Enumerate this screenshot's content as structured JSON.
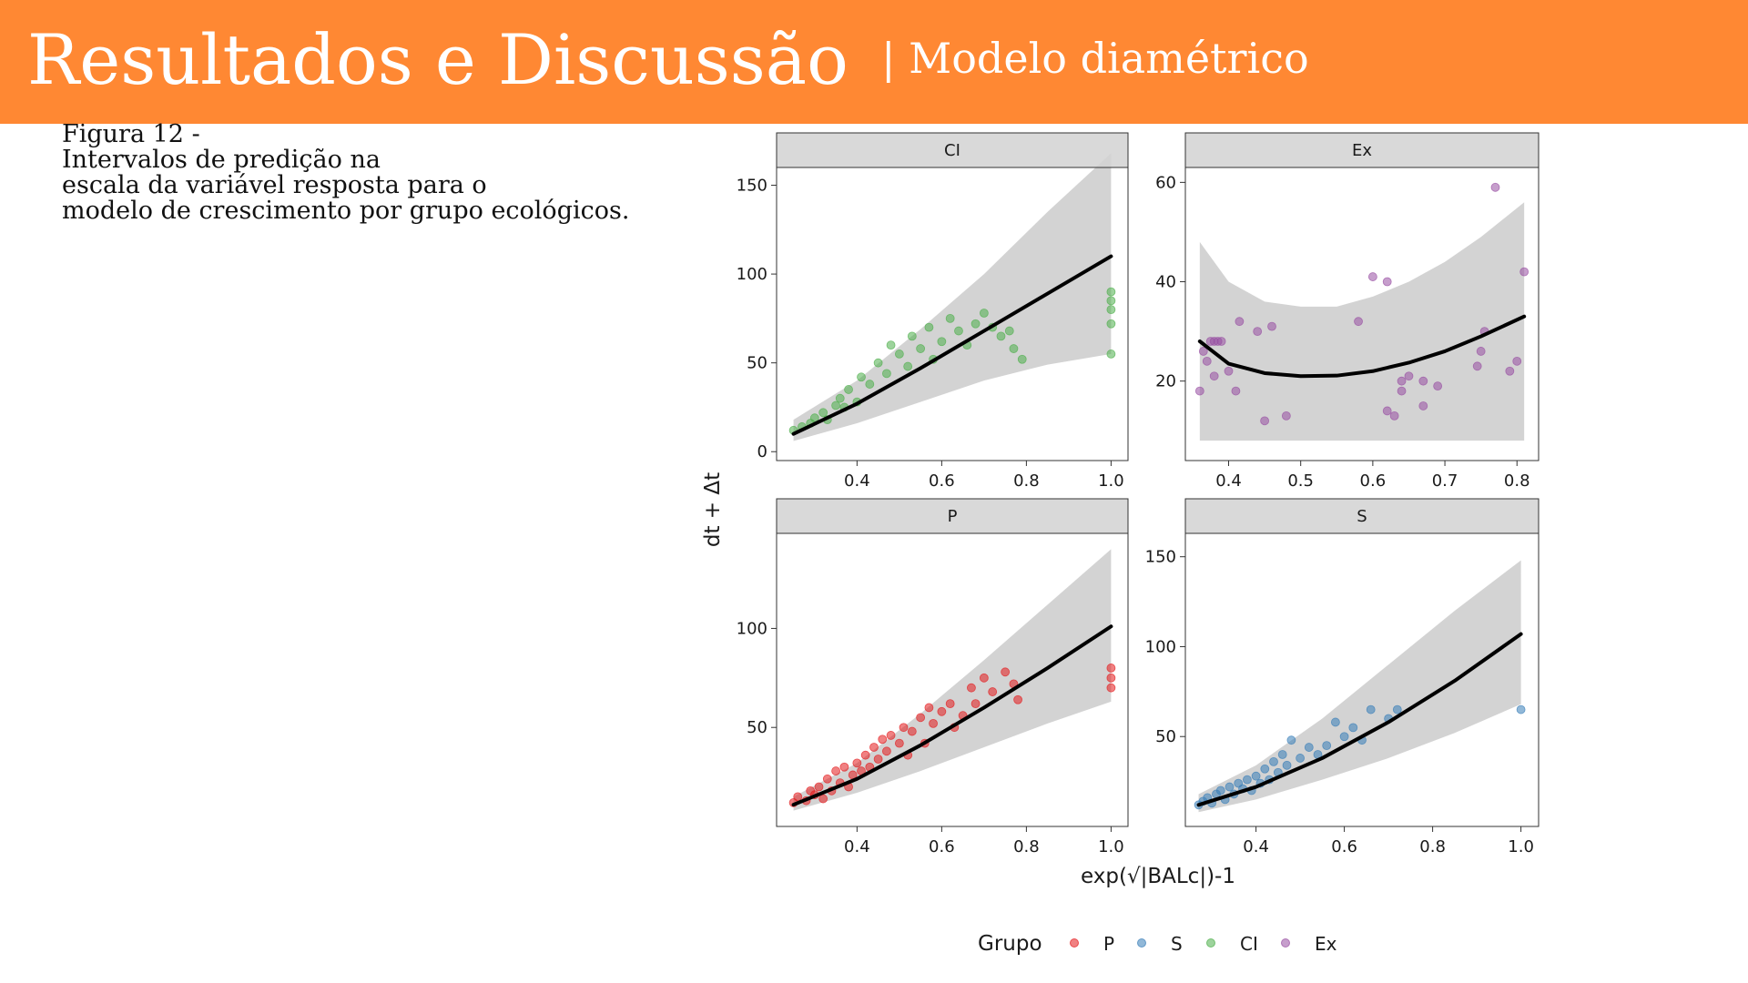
{
  "slide": {
    "title": "Resultados e Discussão",
    "subtitle": "| Modelo diamétrico"
  },
  "caption": {
    "lines": [
      "Figura 12 -",
      "Intervalos de predição na",
      "escala da variável resposta para o",
      "modelo de crescimento por grupo ecológicos."
    ]
  },
  "colors": {
    "header": "#ff8833",
    "P": "#e41a1c",
    "S": "#377eb8",
    "CI": "#4daf4a",
    "Ex": "#984ea3",
    "band": "#d3d3d3",
    "strip": "#d9d9d9"
  },
  "chart_data": {
    "type": "scatter",
    "xlabel": "exp(√|BALc|)-1",
    "ylabel": "dt + Δt",
    "legend": {
      "title": "Grupo",
      "placement": "bottom",
      "entries": [
        "P",
        "S",
        "CI",
        "Ex"
      ]
    },
    "panels": [
      {
        "name": "CI",
        "xlim": [
          0.21,
          1.04
        ],
        "ylim": [
          -5,
          160
        ],
        "xticks": [
          "0.4",
          "0.6",
          "0.8",
          "1.0"
        ],
        "yticks": [
          "0",
          "50",
          "100",
          "150"
        ],
        "fit": {
          "x": [
            0.25,
            0.4,
            0.55,
            0.7,
            0.85,
            1.0
          ],
          "y": [
            10,
            27,
            47,
            68,
            89,
            110
          ]
        },
        "band": {
          "x": [
            0.25,
            0.4,
            0.55,
            0.7,
            0.85,
            1.0
          ],
          "lower": [
            6,
            16,
            28,
            40,
            49,
            55
          ],
          "upper": [
            18,
            40,
            69,
            100,
            135,
            168
          ]
        },
        "points": {
          "x": [
            0.25,
            0.27,
            0.29,
            0.3,
            0.32,
            0.33,
            0.35,
            0.36,
            0.37,
            0.38,
            0.4,
            0.41,
            0.43,
            0.45,
            0.47,
            0.48,
            0.5,
            0.52,
            0.53,
            0.55,
            0.57,
            0.58,
            0.6,
            0.62,
            0.64,
            0.66,
            0.68,
            0.7,
            0.72,
            0.74,
            0.76,
            0.77,
            0.79,
            1.0,
            1.0,
            1.0,
            1.0,
            1.0
          ],
          "y": [
            12,
            14,
            16,
            19,
            22,
            18,
            26,
            30,
            25,
            35,
            28,
            42,
            38,
            50,
            44,
            60,
            55,
            48,
            65,
            58,
            70,
            52,
            62,
            75,
            68,
            60,
            72,
            78,
            70,
            65,
            68,
            58,
            52,
            55,
            72,
            80,
            85,
            90
          ]
        }
      },
      {
        "name": "Ex",
        "xlim": [
          0.34,
          0.83
        ],
        "ylim": [
          4,
          63
        ],
        "xticks": [
          "0.4",
          "0.5",
          "0.6",
          "0.7",
          "0.8"
        ],
        "yticks": [
          "20",
          "40",
          "60"
        ],
        "fit": {
          "x": [
            0.36,
            0.4,
            0.45,
            0.5,
            0.55,
            0.6,
            0.65,
            0.7,
            0.75,
            0.81
          ],
          "y": [
            28,
            23.5,
            21.6,
            21,
            21.1,
            22,
            23.7,
            26,
            29,
            33
          ]
        },
        "band": {
          "x": [
            0.36,
            0.4,
            0.45,
            0.5,
            0.55,
            0.6,
            0.65,
            0.7,
            0.75,
            0.81
          ],
          "lower": [
            8,
            8,
            8,
            8,
            8,
            8,
            8,
            8,
            8,
            8
          ],
          "upper": [
            48,
            40,
            36,
            35,
            35,
            37,
            40,
            44,
            49,
            56
          ]
        },
        "points": {
          "x": [
            0.36,
            0.365,
            0.37,
            0.375,
            0.38,
            0.38,
            0.385,
            0.39,
            0.4,
            0.41,
            0.415,
            0.44,
            0.45,
            0.46,
            0.48,
            0.58,
            0.6,
            0.62,
            0.62,
            0.63,
            0.64,
            0.64,
            0.65,
            0.67,
            0.67,
            0.69,
            0.745,
            0.75,
            0.755,
            0.77,
            0.79,
            0.8,
            0.81
          ],
          "y": [
            18,
            26,
            24,
            28,
            28,
            21,
            28,
            28,
            22,
            18,
            32,
            30,
            12,
            31,
            13,
            32,
            41,
            14,
            40,
            13,
            20,
            18,
            21,
            15,
            20,
            19,
            23,
            26,
            30,
            59,
            22,
            24,
            42
          ]
        }
      },
      {
        "name": "P",
        "xlim": [
          0.21,
          1.04
        ],
        "ylim": [
          0,
          148
        ],
        "xticks": [
          "0.4",
          "0.6",
          "0.8",
          "1.0"
        ],
        "yticks": [
          "50",
          "100"
        ],
        "fit": {
          "x": [
            0.25,
            0.4,
            0.55,
            0.7,
            0.85,
            1.0
          ],
          "y": [
            11,
            24,
            41,
            60,
            80,
            101
          ]
        },
        "band": {
          "x": [
            0.25,
            0.4,
            0.55,
            0.7,
            0.85,
            1.0
          ],
          "lower": [
            8,
            17,
            28,
            40,
            52,
            63
          ],
          "upper": [
            15,
            32,
            57,
            84,
            112,
            140
          ]
        },
        "points": {
          "x": [
            0.25,
            0.26,
            0.28,
            0.29,
            0.3,
            0.31,
            0.32,
            0.33,
            0.34,
            0.35,
            0.36,
            0.37,
            0.38,
            0.39,
            0.4,
            0.41,
            0.42,
            0.43,
            0.44,
            0.45,
            0.46,
            0.47,
            0.48,
            0.5,
            0.51,
            0.52,
            0.53,
            0.55,
            0.56,
            0.57,
            0.58,
            0.6,
            0.62,
            0.63,
            0.65,
            0.67,
            0.68,
            0.7,
            0.72,
            0.75,
            0.77,
            0.78,
            1.0,
            1.0,
            1.0
          ],
          "y": [
            12,
            15,
            13,
            18,
            16,
            20,
            14,
            24,
            18,
            28,
            22,
            30,
            20,
            26,
            32,
            28,
            36,
            30,
            40,
            34,
            44,
            38,
            46,
            42,
            50,
            36,
            48,
            55,
            42,
            60,
            52,
            58,
            62,
            50,
            56,
            70,
            62,
            75,
            68,
            78,
            72,
            64,
            70,
            75,
            80
          ]
        }
      },
      {
        "name": "S",
        "xlim": [
          0.24,
          1.04
        ],
        "ylim": [
          0,
          163
        ],
        "xticks": [
          "0.4",
          "0.6",
          "0.8",
          "1.0"
        ],
        "yticks": [
          "50",
          "100",
          "150"
        ],
        "fit": {
          "x": [
            0.27,
            0.4,
            0.55,
            0.7,
            0.85,
            1.0
          ],
          "y": [
            12,
            22,
            38,
            58,
            81,
            107
          ]
        },
        "band": {
          "x": [
            0.27,
            0.4,
            0.55,
            0.7,
            0.85,
            1.0
          ],
          "lower": [
            8,
            15,
            26,
            38,
            52,
            68
          ],
          "upper": [
            18,
            34,
            60,
            90,
            120,
            148
          ]
        },
        "points": {
          "x": [
            0.27,
            0.28,
            0.29,
            0.3,
            0.31,
            0.32,
            0.33,
            0.34,
            0.35,
            0.36,
            0.37,
            0.38,
            0.39,
            0.4,
            0.41,
            0.42,
            0.43,
            0.44,
            0.45,
            0.46,
            0.47,
            0.48,
            0.5,
            0.52,
            0.54,
            0.56,
            0.58,
            0.6,
            0.62,
            0.64,
            0.66,
            0.7,
            0.72,
            1.0
          ],
          "y": [
            12,
            14,
            16,
            13,
            18,
            20,
            15,
            22,
            18,
            24,
            21,
            26,
            20,
            28,
            24,
            32,
            26,
            36,
            30,
            40,
            34,
            48,
            38,
            44,
            40,
            45,
            58,
            50,
            55,
            48,
            65,
            60,
            65,
            65
          ]
        }
      }
    ]
  }
}
